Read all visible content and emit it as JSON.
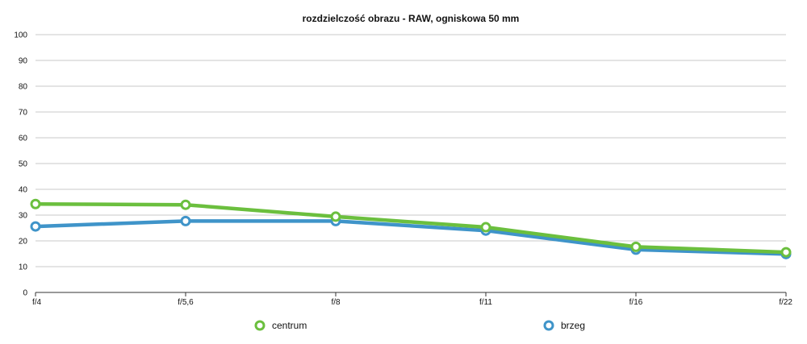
{
  "chart_data": {
    "type": "line",
    "title": "rozdzielczość obrazu - RAW, ogniskowa 50 mm",
    "xlabel": "",
    "ylabel": "",
    "categories": [
      "f/4",
      "f/5,6",
      "f/8",
      "f/11",
      "f/16",
      "f/22"
    ],
    "ylim": [
      0,
      100
    ],
    "yticks": [
      0,
      10,
      20,
      30,
      40,
      50,
      60,
      70,
      80,
      90,
      100
    ],
    "grid": true,
    "legend_position": "bottom",
    "series": [
      {
        "name": "centrum",
        "color": "#6bbf3e",
        "values": [
          34.3,
          34.0,
          29.4,
          25.3,
          17.7,
          15.6
        ]
      },
      {
        "name": "brzeg",
        "color": "#3f94c9",
        "values": [
          25.6,
          27.7,
          27.7,
          24.0,
          16.6,
          14.9
        ]
      }
    ]
  }
}
